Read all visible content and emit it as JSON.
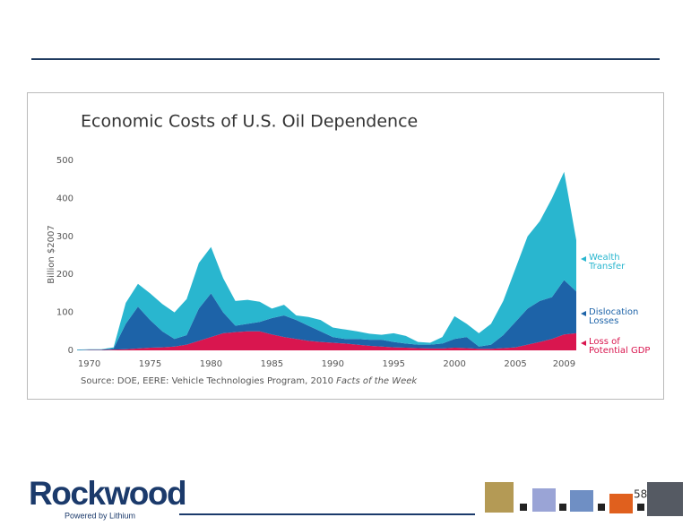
{
  "chart_data": {
    "type": "stacked_area",
    "title": "Economic Costs of U.S. Oil Dependence",
    "ylabel": "Billion $2007",
    "source": "Source: DOE, EERE: Vehicle Technologies Program, 2010",
    "source_italic": "Facts of the Week",
    "x": [
      1969,
      1970,
      1971,
      1972,
      1973,
      1974,
      1975,
      1976,
      1977,
      1978,
      1979,
      1980,
      1981,
      1982,
      1983,
      1984,
      1985,
      1986,
      1987,
      1988,
      1989,
      1990,
      1991,
      1992,
      1993,
      1994,
      1995,
      1996,
      1997,
      1998,
      1999,
      2000,
      2001,
      2002,
      2003,
      2004,
      2005,
      2006,
      2007,
      2008,
      2009,
      2010
    ],
    "xlim": [
      1969,
      2010
    ],
    "xticks": [
      1970,
      1975,
      1980,
      1985,
      1990,
      1995,
      2000,
      2005,
      2009
    ],
    "ylim": [
      0,
      500
    ],
    "yticks": [
      0,
      100,
      200,
      300,
      400,
      500
    ],
    "series": [
      {
        "name": "Loss of Potential GDP",
        "color": "#d9164f",
        "values": [
          0,
          1,
          1,
          2,
          3,
          5,
          7,
          8,
          10,
          15,
          25,
          35,
          45,
          48,
          50,
          50,
          42,
          35,
          30,
          25,
          22,
          20,
          18,
          15,
          12,
          10,
          8,
          7,
          6,
          5,
          5,
          7,
          6,
          4,
          4,
          6,
          8,
          15,
          22,
          30,
          42,
          45
        ]
      },
      {
        "name": "Dislocation Losses",
        "color": "#1d63a8",
        "values": [
          1,
          1,
          1,
          3,
          67,
          110,
          73,
          42,
          20,
          25,
          85,
          115,
          55,
          17,
          20,
          25,
          43,
          57,
          50,
          40,
          28,
          15,
          12,
          15,
          16,
          18,
          14,
          11,
          9,
          10,
          13,
          23,
          29,
          6,
          11,
          34,
          67,
          95,
          108,
          110,
          143,
          110
        ]
      },
      {
        "name": "Wealth Transfer",
        "color": "#29b6cf",
        "values": [
          1,
          1,
          1,
          3,
          55,
          60,
          70,
          72,
          70,
          95,
          120,
          122,
          90,
          65,
          63,
          53,
          25,
          28,
          12,
          23,
          30,
          25,
          25,
          20,
          16,
          13,
          23,
          20,
          7,
          5,
          17,
          60,
          35,
          35,
          55,
          90,
          140,
          190,
          210,
          260,
          285,
          135
        ]
      }
    ]
  },
  "logo": {
    "name": "Rockwood",
    "tagline": "Powered by Lithium"
  },
  "page_number": "58"
}
